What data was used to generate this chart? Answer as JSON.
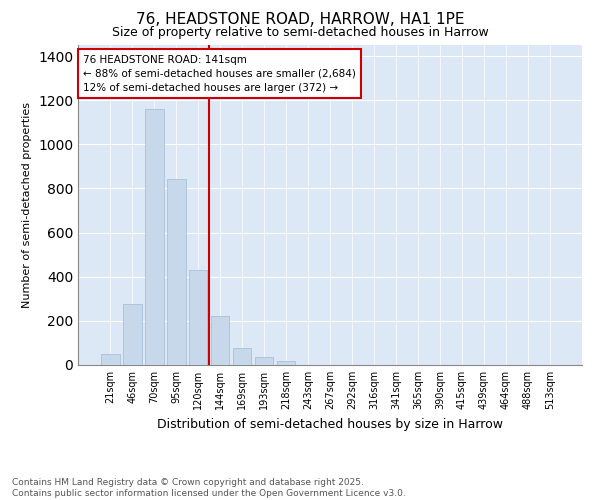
{
  "title_line1": "76, HEADSTONE ROAD, HARROW, HA1 1PE",
  "title_line2": "Size of property relative to semi-detached houses in Harrow",
  "xlabel": "Distribution of semi-detached houses by size in Harrow",
  "ylabel": "Number of semi-detached properties",
  "bar_color": "#c8d8eb",
  "bar_edge_color": "#a8c0d8",
  "vline_color": "#cc0000",
  "annotation_text": "76 HEADSTONE ROAD: 141sqm\n← 88% of semi-detached houses are smaller (2,684)\n12% of semi-detached houses are larger (372) →",
  "categories": [
    "21sqm",
    "46sqm",
    "70sqm",
    "95sqm",
    "120sqm",
    "144sqm",
    "169sqm",
    "193sqm",
    "218sqm",
    "243sqm",
    "267sqm",
    "292sqm",
    "316sqm",
    "341sqm",
    "365sqm",
    "390sqm",
    "415sqm",
    "439sqm",
    "464sqm",
    "488sqm",
    "513sqm"
  ],
  "values": [
    50,
    275,
    1160,
    845,
    430,
    220,
    75,
    35,
    20,
    0,
    0,
    0,
    0,
    0,
    0,
    0,
    0,
    0,
    0,
    0,
    0
  ],
  "ylim": [
    0,
    1450
  ],
  "background_color": "#ffffff",
  "plot_background": "#dce8f5",
  "grid_color": "#ffffff",
  "footer_line1": "Contains HM Land Registry data © Crown copyright and database right 2025.",
  "footer_line2": "Contains public sector information licensed under the Open Government Licence v3.0.",
  "annotation_box_facecolor": "#ffffff",
  "annotation_box_edgecolor": "#cc0000",
  "vline_bar_index": 5
}
